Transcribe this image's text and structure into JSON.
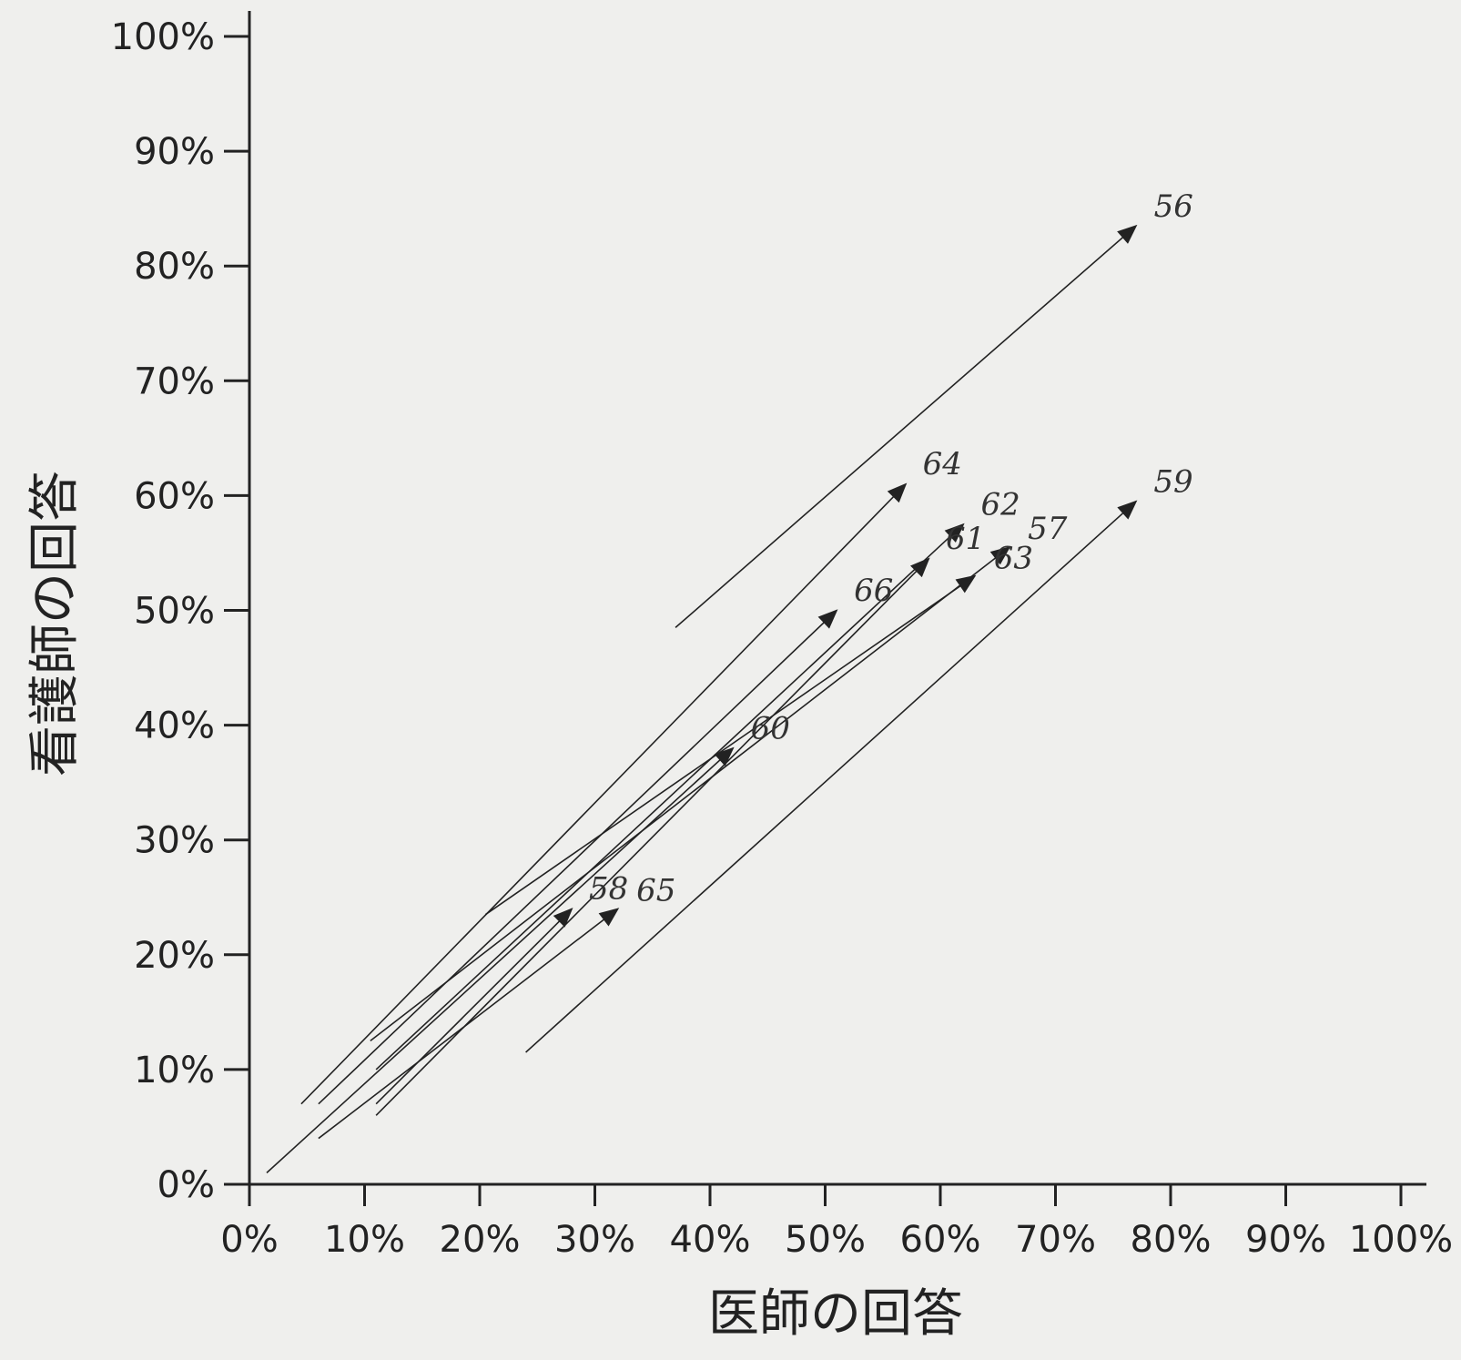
{
  "chart_data": {
    "type": "scatter",
    "subtype": "arrow",
    "xlabel": "医師の回答",
    "ylabel": "看護師の回答",
    "xlim": [
      0,
      100
    ],
    "ylim": [
      0,
      100
    ],
    "x_ticks": [
      "0%",
      "10%",
      "20%",
      "30%",
      "40%",
      "50%",
      "60%",
      "70%",
      "80%",
      "90%",
      "100%"
    ],
    "y_ticks": [
      "0%",
      "10%",
      "20%",
      "30%",
      "40%",
      "50%",
      "60%",
      "70%",
      "80%",
      "90%",
      "100%"
    ],
    "grid": false,
    "legend": "none",
    "arrows": [
      {
        "label": "56",
        "from": [
          37,
          48.5
        ],
        "to": [
          77,
          83.5
        ]
      },
      {
        "label": "64",
        "from": [
          4.5,
          7
        ],
        "to": [
          57,
          61
        ]
      },
      {
        "label": "62",
        "from": [
          11,
          10
        ],
        "to": [
          62,
          57.5
        ]
      },
      {
        "label": "61",
        "from": [
          11,
          6
        ],
        "to": [
          59,
          54.5
        ]
      },
      {
        "label": "57",
        "from": [
          10.5,
          12.5
        ],
        "to": [
          66,
          55.5
        ]
      },
      {
        "label": "63",
        "from": [
          20.5,
          23.5
        ],
        "to": [
          63,
          53
        ]
      },
      {
        "label": "66",
        "from": [
          6,
          7
        ],
        "to": [
          51,
          50
        ]
      },
      {
        "label": "59",
        "from": [
          24,
          11.5
        ],
        "to": [
          77,
          59.5
        ]
      },
      {
        "label": "60",
        "from": [
          1.5,
          1
        ],
        "to": [
          42,
          38
        ]
      },
      {
        "label": "58",
        "from": [
          11,
          7
        ],
        "to": [
          28,
          24
        ]
      },
      {
        "label": "65",
        "from": [
          6,
          4
        ],
        "to": [
          32,
          24
        ]
      }
    ]
  }
}
